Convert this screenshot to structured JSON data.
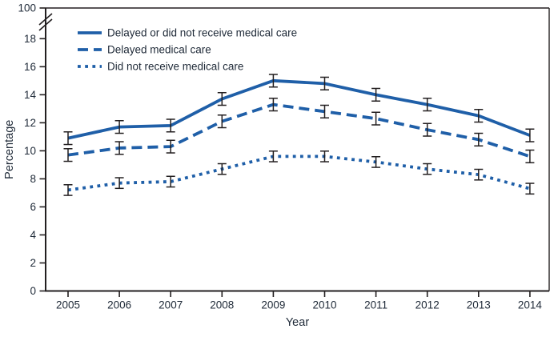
{
  "figure": {
    "background": "#ffffff",
    "line_color": "#1f5fa8",
    "axis_color": "#231f20",
    "text_color": "#1f2a38"
  },
  "chart_data": {
    "type": "line",
    "title": "",
    "xlabel": "Year",
    "ylabel": "Percentage",
    "categories": [
      "2005",
      "2006",
      "2007",
      "2008",
      "2009",
      "2010",
      "2011",
      "2012",
      "2013",
      "2014"
    ],
    "ylim": [
      0,
      18
    ],
    "yticks": [
      "0",
      "2",
      "4",
      "6",
      "8",
      "10",
      "12",
      "14",
      "16",
      "18"
    ],
    "y_axis_break": {
      "upper_tick_label": "100"
    },
    "grid": false,
    "legend_position": "top-left-inside",
    "error_bars": true,
    "series": [
      {
        "name": "Delayed or did not receive medical care",
        "line_style": "solid",
        "values": [
          10.9,
          11.7,
          11.8,
          13.7,
          15.0,
          14.8,
          14.0,
          13.3,
          12.5,
          11.1
        ],
        "error_half": 0.45
      },
      {
        "name": "Delayed medical care",
        "line_style": "dashed",
        "values": [
          9.7,
          10.2,
          10.3,
          12.1,
          13.3,
          12.8,
          12.3,
          11.5,
          10.8,
          9.6
        ],
        "error_half": 0.45
      },
      {
        "name": "Did not receive medical care",
        "line_style": "dotted",
        "values": [
          7.2,
          7.7,
          7.8,
          8.7,
          9.6,
          9.6,
          9.2,
          8.7,
          8.3,
          7.3
        ],
        "error_half": 0.38
      }
    ]
  }
}
